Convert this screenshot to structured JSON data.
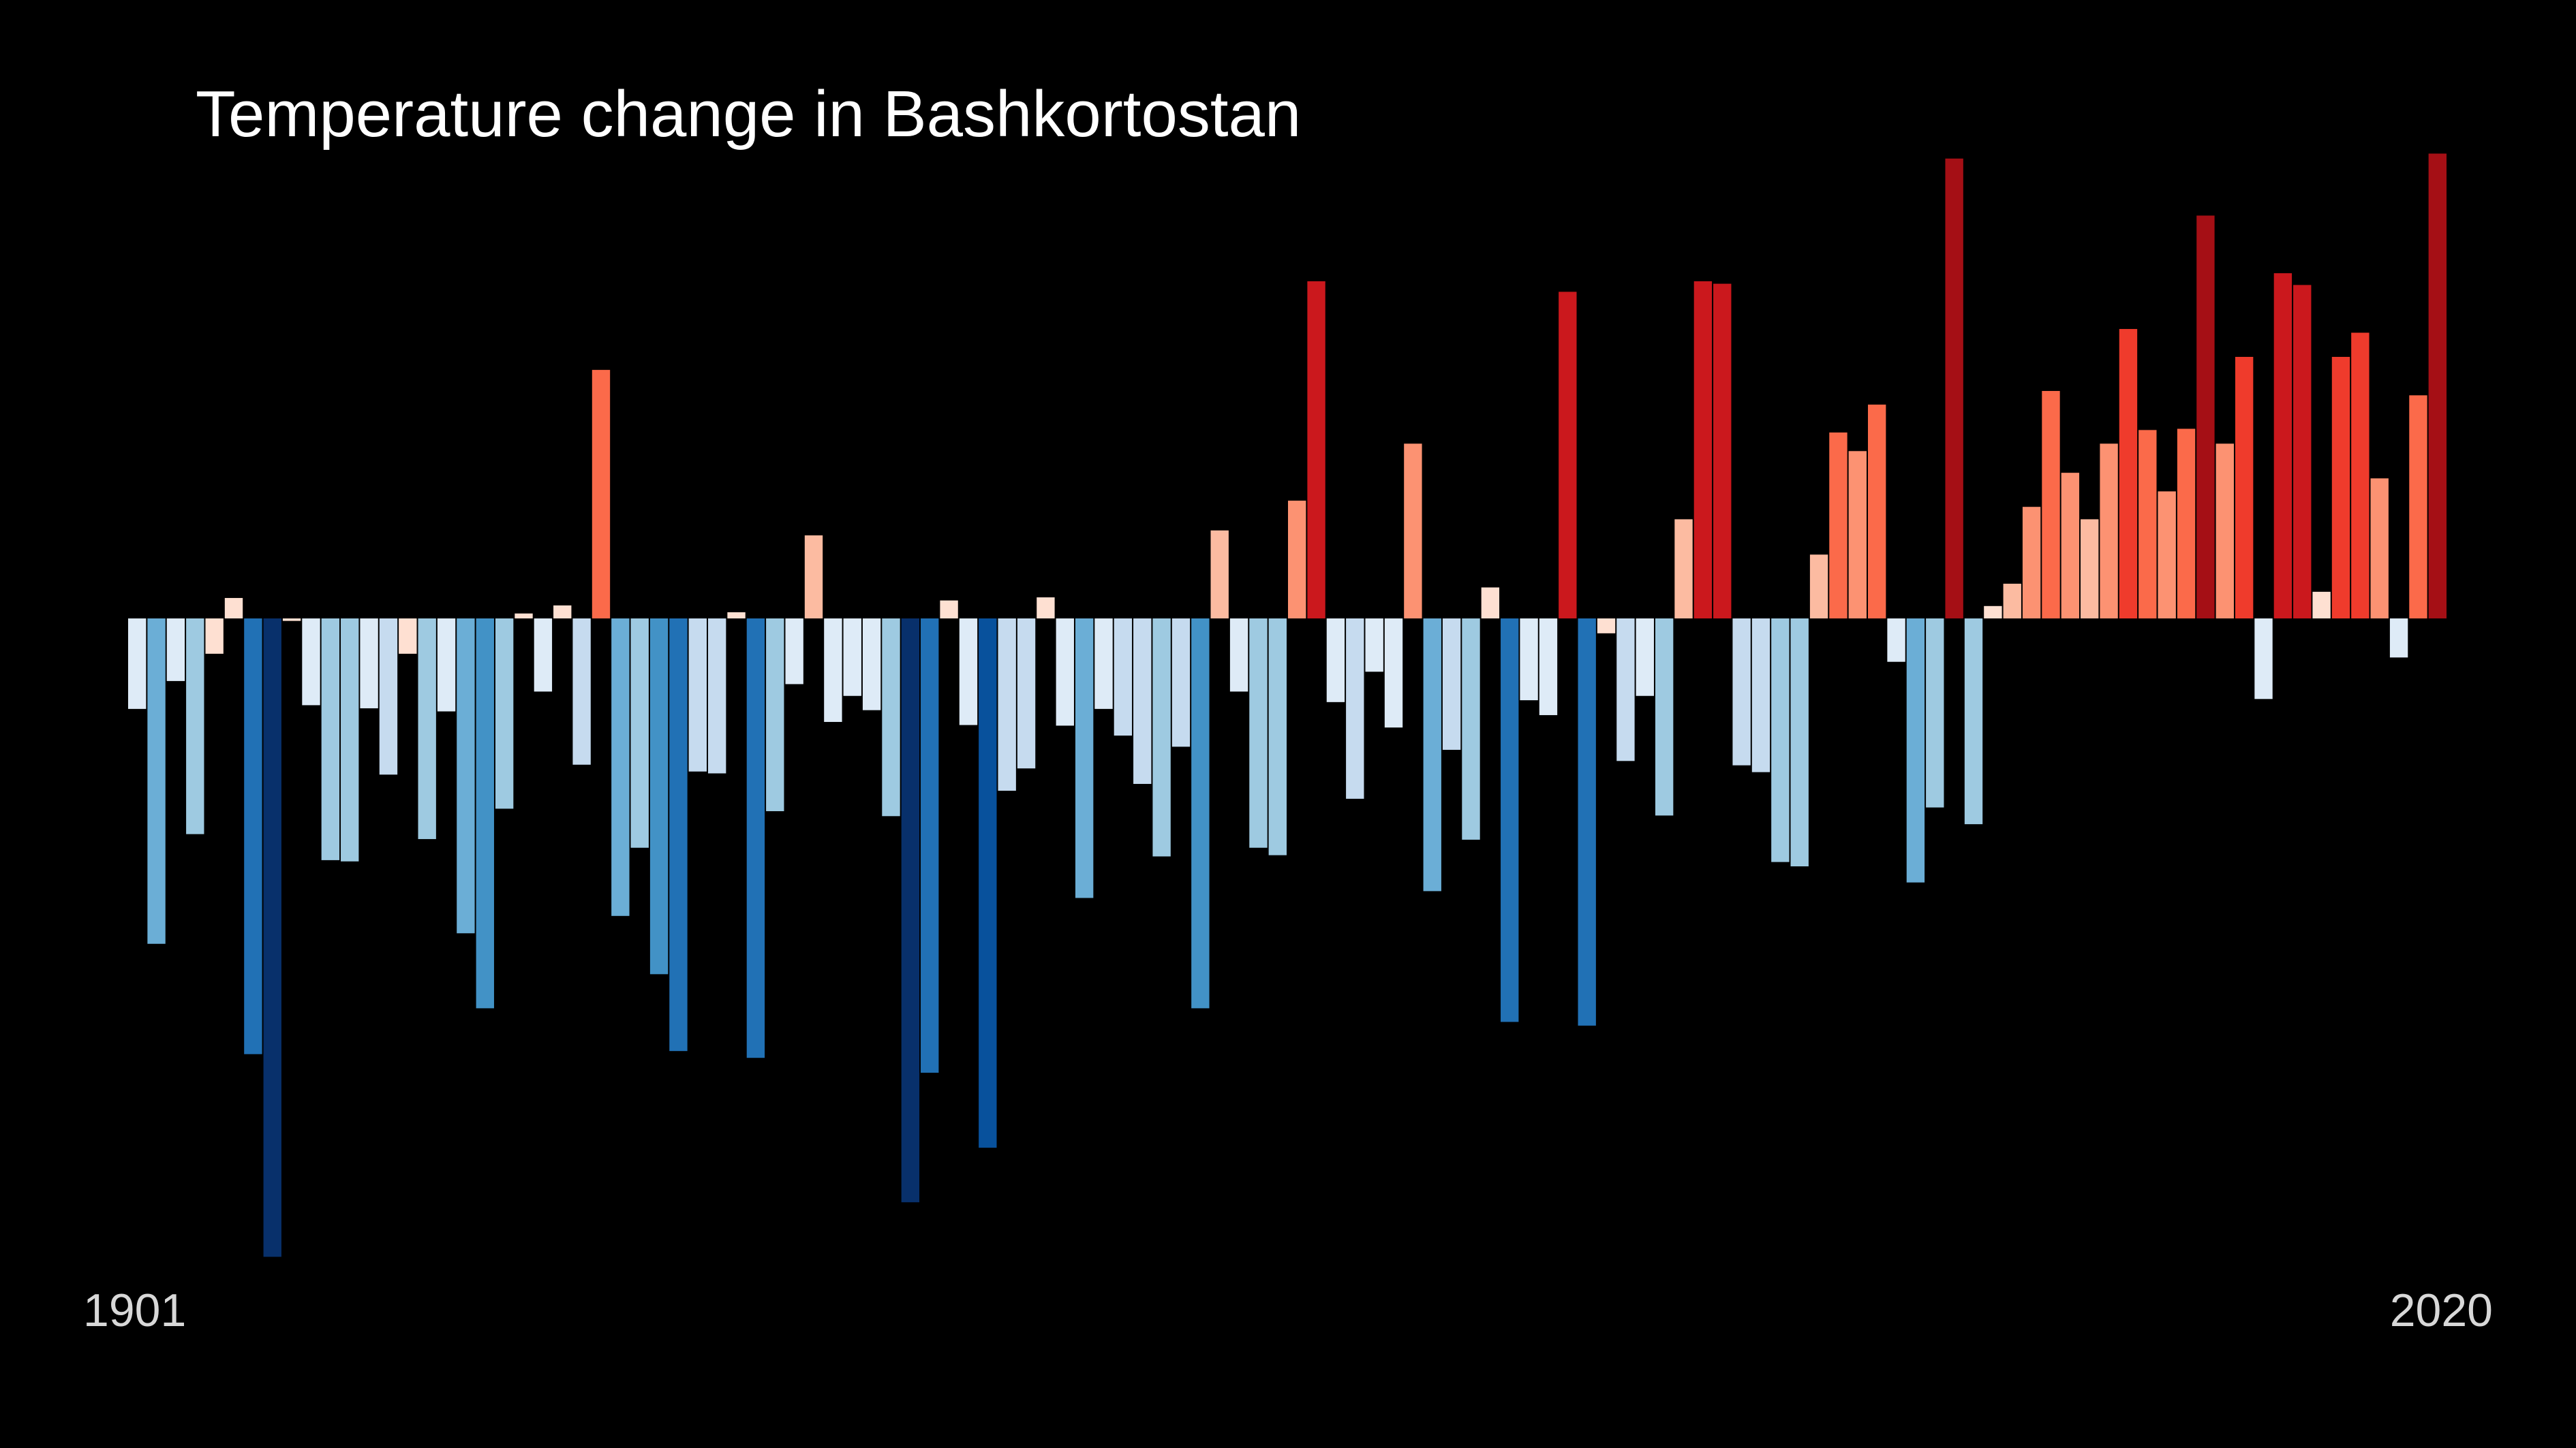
{
  "chart_data": {
    "type": "bar",
    "title": "Temperature change in Bashkortostan",
    "start_label": "1901",
    "end_label": "2020",
    "x_start": 1901,
    "x_end": 2020,
    "ylim": [
      -1.08,
      0.8
    ],
    "grid": false,
    "legend": "none",
    "colors": {
      "background": "#000000",
      "title": "#ffffff",
      "year_labels": "#d8d8d8",
      "palette": [
        "#08306b",
        "#08519c",
        "#2171b5",
        "#4292c6",
        "#6baed6",
        "#9ecae1",
        "#c6dbef",
        "#deebf7",
        "#fee0d2",
        "#fcbba1",
        "#fc9272",
        "#fb6a4a",
        "#ef3b2c",
        "#cb181d",
        "#a50f15"
      ]
    },
    "values": [
      -0.146,
      -0.525,
      -0.101,
      -0.348,
      -0.057,
      0.033,
      -0.703,
      -1.03,
      -0.004,
      -0.14,
      -0.39,
      -0.392,
      -0.145,
      -0.252,
      -0.057,
      -0.356,
      -0.15,
      -0.508,
      -0.629,
      -0.307,
      0.008,
      -0.118,
      0.021,
      -0.236,
      0.401,
      -0.48,
      -0.37,
      -0.574,
      -0.698,
      -0.247,
      -0.25,
      0.01,
      -0.709,
      -0.311,
      -0.106,
      0.134,
      -0.167,
      -0.125,
      -0.148,
      -0.319,
      -0.942,
      -0.733,
      0.029,
      -0.172,
      -0.854,
      -0.278,
      -0.242,
      0.034,
      -0.173,
      -0.451,
      -0.146,
      -0.189,
      -0.267,
      -0.384,
      -0.207,
      -0.629,
      0.142,
      -0.118,
      -0.37,
      -0.382,
      0.19,
      0.544,
      -0.135,
      -0.291,
      -0.086,
      -0.176,
      0.282,
      -0.44,
      -0.212,
      -0.357,
      0.05,
      -0.651,
      -0.132,
      -0.156,
      0.527,
      -0.657,
      -0.024,
      -0.23,
      -0.125,
      -0.318,
      0.16,
      0.544,
      0.54,
      -0.237,
      -0.248,
      -0.393,
      -0.4,
      0.103,
      0.3,
      0.27,
      0.345,
      -0.07,
      -0.426,
      -0.305,
      0.742,
      -0.332,
      0.02,
      0.056,
      0.18,
      0.367,
      0.235,
      0.16,
      0.282,
      0.467,
      0.304,
      0.205,
      0.306,
      0.65,
      0.282,
      0.422,
      -0.13,
      0.557,
      0.538,
      0.043,
      0.422,
      0.461,
      0.226,
      -0.063,
      0.36,
      0.75
    ]
  }
}
